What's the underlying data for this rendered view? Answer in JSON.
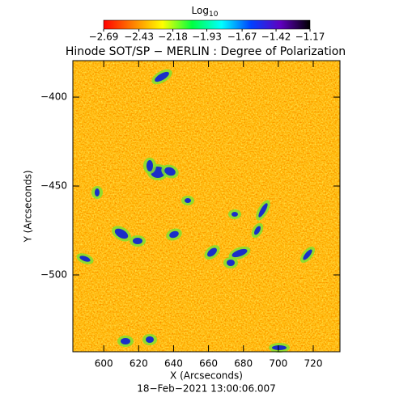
{
  "chart_data": {
    "type": "image",
    "title": "Hinode SOT/SP − MERLIN : Degree of Polarization",
    "colorbar": {
      "title": "Log",
      "title_subscript": "10",
      "clim": [
        -2.69,
        -1.17
      ],
      "ticks": [
        {
          "value": -2.69,
          "label": "−2.69"
        },
        {
          "value": -2.43,
          "label": "−2.43"
        },
        {
          "value": -2.18,
          "label": "−2.18"
        },
        {
          "value": -1.93,
          "label": "−1.93"
        },
        {
          "value": -1.67,
          "label": "−1.67"
        },
        {
          "value": -1.42,
          "label": "−1.42"
        },
        {
          "value": -1.17,
          "label": "−1.17"
        }
      ],
      "colormap": [
        "#ff0000",
        "#ff8000",
        "#ffff00",
        "#00ff40",
        "#00ffff",
        "#0040ff",
        "#6000c0",
        "#000000"
      ]
    },
    "x_label": "X (Arcseconds)",
    "y_label": "Y (Arcseconds)",
    "date": "18−Feb−2021 13:00:06.007",
    "xlim": [
      582.3,
      735.3
    ],
    "ylim": [
      -543.2,
      -379.5
    ],
    "xticks": [
      600,
      620,
      640,
      660,
      680,
      700,
      720
    ],
    "yticks": [
      {
        "value": -400,
        "label": "−400"
      },
      {
        "value": -450,
        "label": "−450"
      },
      {
        "value": -500,
        "label": "−500"
      }
    ]
  }
}
